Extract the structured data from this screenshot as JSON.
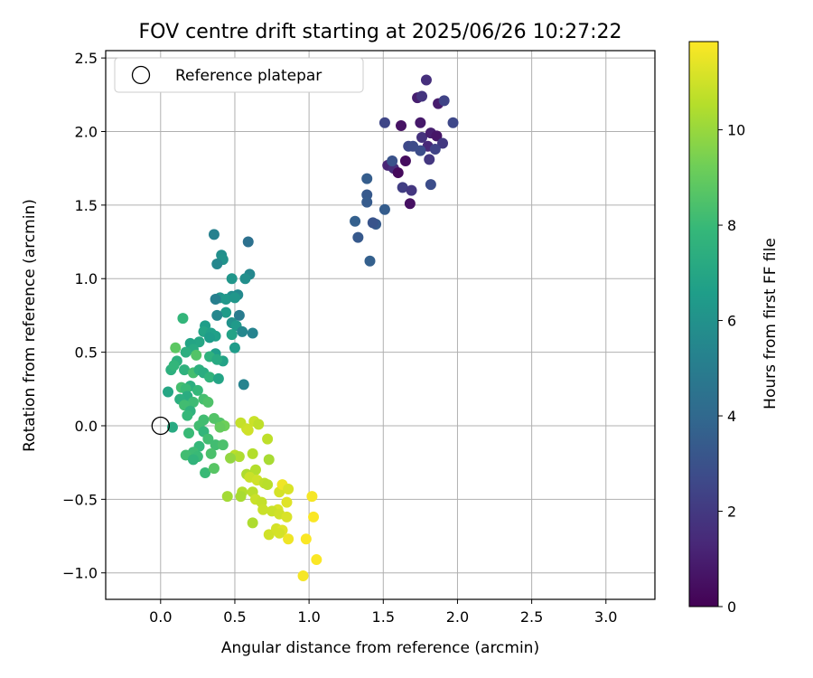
{
  "chart_data": {
    "type": "scatter",
    "title": "FOV centre drift starting at 2025/06/26 10:27:22",
    "xlabel": "Angular distance from reference (arcmin)",
    "ylabel": "Rotation from reference (arcmin)",
    "xlim": [
      -0.37,
      3.33
    ],
    "ylim": [
      -1.18,
      2.55
    ],
    "xticks": [
      0.0,
      0.5,
      1.0,
      1.5,
      2.0,
      2.5,
      3.0
    ],
    "xtick_labels": [
      "0.0",
      "0.5",
      "1.0",
      "1.5",
      "2.0",
      "2.5",
      "3.0"
    ],
    "yticks": [
      -1.0,
      -0.5,
      0.0,
      0.5,
      1.0,
      1.5,
      2.0,
      2.5
    ],
    "ytick_labels": [
      "−1.0",
      "−0.5",
      "0.0",
      "0.5",
      "1.0",
      "1.5",
      "2.0",
      "2.5"
    ],
    "grid": true,
    "legend": {
      "position": "upper-left",
      "entries": [
        "Reference platepar"
      ]
    },
    "reference_point": {
      "x": 0.0,
      "y": 0.0
    },
    "colorbar": {
      "label": "Hours from first FF file",
      "colormap": "viridis",
      "range": [
        0,
        11.85
      ],
      "ticks": [
        0,
        2,
        4,
        6,
        8,
        10
      ],
      "tick_labels": [
        "0",
        "2",
        "4",
        "6",
        "8",
        "10"
      ]
    },
    "points": [
      [
        1.65,
        1.8,
        0.4
      ],
      [
        1.68,
        1.51,
        0.5
      ],
      [
        1.79,
        2.35,
        1.6
      ],
      [
        1.73,
        2.23,
        1.0
      ],
      [
        1.76,
        2.24,
        1.8
      ],
      [
        1.87,
        2.19,
        0.9
      ],
      [
        1.91,
        2.21,
        2.4
      ],
      [
        1.62,
        2.04,
        0.6
      ],
      [
        1.51,
        2.06,
        2.5
      ],
      [
        1.75,
        2.06,
        0.8
      ],
      [
        1.97,
        2.06,
        2.6
      ],
      [
        1.76,
        1.96,
        1.7
      ],
      [
        1.82,
        1.99,
        1.0
      ],
      [
        1.86,
        1.97,
        0.7
      ],
      [
        1.9,
        1.92,
        2.0
      ],
      [
        1.67,
        1.9,
        2.6
      ],
      [
        1.8,
        1.9,
        1.3
      ],
      [
        1.85,
        1.88,
        2.4
      ],
      [
        1.7,
        1.9,
        2.7
      ],
      [
        1.75,
        1.87,
        2.8
      ],
      [
        1.53,
        1.77,
        1.2
      ],
      [
        1.57,
        1.75,
        1.5
      ],
      [
        1.6,
        1.72,
        0.3
      ],
      [
        1.56,
        1.8,
        3.0
      ],
      [
        1.63,
        1.62,
        2.2
      ],
      [
        1.69,
        1.6,
        1.9
      ],
      [
        1.82,
        1.64,
        2.8
      ],
      [
        1.81,
        1.81,
        1.9
      ],
      [
        1.39,
        1.68,
        3.5
      ],
      [
        1.39,
        1.57,
        3.3
      ],
      [
        1.39,
        1.52,
        3.4
      ],
      [
        1.51,
        1.47,
        3.5
      ],
      [
        1.45,
        1.37,
        3.4
      ],
      [
        1.43,
        1.38,
        3.1
      ],
      [
        1.31,
        1.39,
        3.6
      ],
      [
        1.33,
        1.28,
        3.3
      ],
      [
        1.41,
        1.12,
        3.6
      ],
      [
        0.36,
        1.3,
        5.2
      ],
      [
        0.59,
        1.25,
        4.4
      ],
      [
        0.41,
        1.16,
        5.9
      ],
      [
        0.42,
        1.13,
        6.0
      ],
      [
        0.38,
        1.1,
        5.5
      ],
      [
        0.48,
        1.0,
        6.2
      ],
      [
        0.6,
        1.03,
        5.5
      ],
      [
        0.57,
        1.0,
        5.9
      ],
      [
        0.52,
        0.89,
        5.6
      ],
      [
        0.48,
        0.88,
        5.8
      ],
      [
        0.4,
        0.87,
        6.1
      ],
      [
        0.44,
        0.86,
        6.3
      ],
      [
        0.37,
        0.86,
        5.1
      ],
      [
        0.5,
        0.87,
        6.2
      ],
      [
        0.44,
        0.77,
        6.5
      ],
      [
        0.38,
        0.75,
        5.5
      ],
      [
        0.53,
        0.75,
        4.9
      ],
      [
        0.48,
        0.7,
        6.0
      ],
      [
        0.51,
        0.68,
        6.4
      ],
      [
        0.3,
        0.68,
        6.6
      ],
      [
        0.15,
        0.73,
        7.8
      ],
      [
        0.29,
        0.64,
        6.9
      ],
      [
        0.34,
        0.63,
        6.7
      ],
      [
        0.37,
        0.61,
        6.7
      ],
      [
        0.33,
        0.6,
        6.5
      ],
      [
        0.48,
        0.62,
        6.8
      ],
      [
        0.55,
        0.64,
        5.5
      ],
      [
        0.62,
        0.63,
        5.3
      ],
      [
        0.26,
        0.57,
        7.0
      ],
      [
        0.2,
        0.56,
        6.9
      ],
      [
        0.22,
        0.52,
        7.2
      ],
      [
        0.1,
        0.53,
        8.8
      ],
      [
        0.5,
        0.53,
        6.5
      ],
      [
        0.17,
        0.5,
        7.4
      ],
      [
        0.37,
        0.49,
        6.6
      ],
      [
        0.33,
        0.47,
        7.6
      ],
      [
        0.42,
        0.44,
        6.8
      ],
      [
        0.38,
        0.45,
        7.2
      ],
      [
        0.24,
        0.48,
        8.6
      ],
      [
        0.11,
        0.44,
        7.5
      ],
      [
        0.07,
        0.38,
        7.5
      ],
      [
        0.09,
        0.41,
        7.8
      ],
      [
        0.16,
        0.38,
        7.6
      ],
      [
        0.22,
        0.36,
        8.3
      ],
      [
        0.26,
        0.38,
        7.5
      ],
      [
        0.29,
        0.36,
        7.3
      ],
      [
        0.33,
        0.33,
        7.7
      ],
      [
        0.39,
        0.32,
        6.9
      ],
      [
        0.2,
        0.27,
        7.4
      ],
      [
        0.14,
        0.26,
        8.3
      ],
      [
        0.17,
        0.25,
        8.0
      ],
      [
        0.25,
        0.24,
        7.9
      ],
      [
        0.18,
        0.2,
        7.3
      ],
      [
        0.13,
        0.18,
        7.4
      ],
      [
        0.05,
        0.23,
        7.0
      ],
      [
        0.22,
        0.16,
        8.1
      ],
      [
        0.29,
        0.18,
        8.3
      ],
      [
        0.32,
        0.16,
        8.5
      ],
      [
        0.56,
        0.28,
        5.3
      ],
      [
        0.16,
        0.14,
        8.2
      ],
      [
        0.2,
        0.1,
        7.6
      ],
      [
        0.18,
        0.07,
        7.9
      ],
      [
        0.29,
        0.04,
        8.2
      ],
      [
        0.36,
        0.05,
        8.6
      ],
      [
        0.4,
        0.02,
        8.6
      ],
      [
        0.43,
        0.0,
        9.2
      ],
      [
        0.4,
        -0.01,
        9.0
      ],
      [
        0.26,
        0.0,
        8.2
      ],
      [
        0.08,
        -0.01,
        7.2
      ],
      [
        0.19,
        -0.05,
        8.0
      ],
      [
        0.29,
        -0.04,
        7.8
      ],
      [
        0.32,
        -0.09,
        8.2
      ],
      [
        0.37,
        -0.13,
        8.2
      ],
      [
        0.42,
        -0.13,
        8.4
      ],
      [
        0.26,
        -0.14,
        7.9
      ],
      [
        0.22,
        -0.18,
        8.1
      ],
      [
        0.17,
        -0.2,
        8.2
      ],
      [
        0.25,
        -0.21,
        8.0
      ],
      [
        0.34,
        -0.19,
        8.4
      ],
      [
        0.22,
        -0.23,
        7.7
      ],
      [
        0.3,
        -0.32,
        8.0
      ],
      [
        0.36,
        -0.29,
        8.7
      ],
      [
        0.54,
        0.02,
        10.8
      ],
      [
        0.63,
        0.03,
        10.9
      ],
      [
        0.66,
        0.01,
        10.7
      ],
      [
        0.58,
        -0.02,
        10.9
      ],
      [
        0.59,
        -0.03,
        11.0
      ],
      [
        0.72,
        -0.09,
        10.7
      ],
      [
        0.5,
        -0.2,
        10.6
      ],
      [
        0.53,
        -0.21,
        10.4
      ],
      [
        0.47,
        -0.22,
        9.9
      ],
      [
        0.62,
        -0.19,
        10.5
      ],
      [
        0.73,
        -0.23,
        10.3
      ],
      [
        0.64,
        -0.3,
        10.5
      ],
      [
        0.58,
        -0.33,
        10.4
      ],
      [
        0.6,
        -0.35,
        10.9
      ],
      [
        0.65,
        -0.37,
        11.0
      ],
      [
        0.7,
        -0.39,
        10.7
      ],
      [
        0.72,
        -0.4,
        10.6
      ],
      [
        0.45,
        -0.48,
        10.2
      ],
      [
        0.55,
        -0.45,
        10.5
      ],
      [
        0.54,
        -0.48,
        10.3
      ],
      [
        0.62,
        -0.45,
        10.6
      ],
      [
        0.64,
        -0.5,
        10.9
      ],
      [
        0.68,
        -0.52,
        10.8
      ],
      [
        0.8,
        -0.45,
        11.1
      ],
      [
        0.82,
        -0.4,
        11.6
      ],
      [
        0.86,
        -0.43,
        11.2
      ],
      [
        0.69,
        -0.57,
        10.9
      ],
      [
        0.79,
        -0.57,
        11.2
      ],
      [
        0.85,
        -0.52,
        11.3
      ],
      [
        0.75,
        -0.58,
        10.9
      ],
      [
        0.8,
        -0.6,
        11.0
      ],
      [
        0.85,
        -0.62,
        11.2
      ],
      [
        0.62,
        -0.66,
        10.4
      ],
      [
        0.73,
        -0.74,
        11.0
      ],
      [
        0.78,
        -0.7,
        11.1
      ],
      [
        0.82,
        -0.71,
        11.3
      ],
      [
        0.86,
        -0.77,
        11.6
      ],
      [
        0.8,
        -0.73,
        11.1
      ],
      [
        1.02,
        -0.48,
        11.7
      ],
      [
        1.03,
        -0.62,
        11.8
      ],
      [
        0.98,
        -0.77,
        11.8
      ],
      [
        0.96,
        -1.02,
        11.7
      ],
      [
        1.05,
        -0.91,
        11.8
      ]
    ]
  }
}
